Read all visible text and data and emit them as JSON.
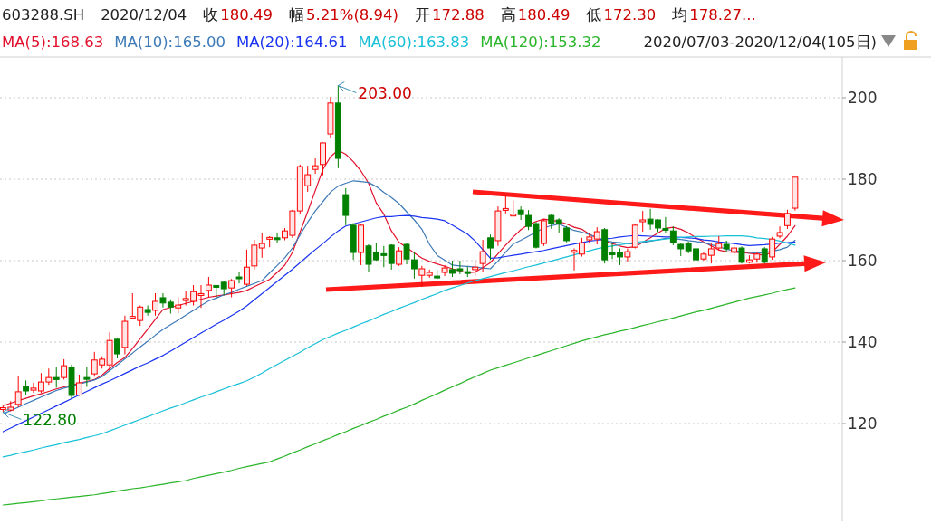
{
  "chart_data": {
    "type": "candlestick",
    "title": "603288.SH",
    "subtitle": "2020/07/03-2020/12/04(105日)",
    "annotations": [
      "2020/12/04",
      "收",
      "180.49",
      "幅",
      "5.21%(8.94)",
      "开",
      "172.88",
      "高",
      "180.49",
      "低",
      "172.30",
      "均",
      "178.27...",
      "203.00",
      {
        "text": "122.80",
        "y": 122.8
      }
    ],
    "categories": [
      null,
      null,
      null,
      null,
      null,
      null,
      null,
      null,
      null,
      null,
      null,
      null,
      null,
      null,
      null,
      null,
      null,
      null,
      null,
      null,
      null,
      null,
      null,
      null,
      null,
      null,
      null,
      null,
      null,
      null,
      null,
      null,
      null,
      null,
      null,
      null,
      null,
      null,
      null,
      null,
      null,
      null,
      null,
      null,
      null,
      null,
      null,
      null,
      null,
      null,
      null,
      null,
      null,
      null,
      null,
      null,
      null,
      null,
      null,
      null,
      null,
      null,
      null,
      null,
      null,
      null,
      null,
      null,
      null,
      null,
      null,
      null,
      null,
      null,
      null,
      null,
      null,
      null,
      null,
      null,
      null,
      null,
      null,
      null,
      null,
      null,
      null,
      null,
      null,
      null,
      null,
      null,
      null,
      null,
      null,
      null,
      null,
      null,
      null,
      null,
      null,
      null,
      null,
      null,
      null
    ],
    "ohlc": [
      [
        123.6,
        124.3,
        122.8,
        123.9
      ],
      [
        123.3,
        125.5,
        123,
        124
      ],
      [
        124.7,
        131.7,
        124,
        127.8
      ],
      [
        129.1,
        130.6,
        127,
        128
      ],
      [
        128.2,
        130,
        127.5,
        128.7
      ],
      [
        128,
        132.4,
        127.5,
        130.2
      ],
      [
        130.2,
        133.5,
        129.5,
        131.3
      ],
      [
        131.3,
        134,
        128.8,
        130.8
      ],
      [
        131.3,
        135.8,
        130.8,
        134.2
      ],
      [
        133.8,
        134.5,
        126.2,
        126.9
      ],
      [
        127,
        132,
        126.8,
        130
      ],
      [
        131.3,
        134,
        129,
        130.9
      ],
      [
        132.2,
        137.6,
        131.5,
        135.6
      ],
      [
        134.4,
        136.5,
        133.5,
        135.8
      ],
      [
        134.4,
        142.4,
        133,
        140.4
      ],
      [
        140.7,
        141,
        136,
        137.1
      ],
      [
        138.7,
        146.5,
        137,
        145.1
      ],
      [
        146,
        152,
        145.8,
        146.3
      ],
      [
        145.3,
        149,
        144,
        148.6
      ],
      [
        148,
        149,
        146.5,
        147.3
      ],
      [
        147.8,
        152,
        146.5,
        150
      ],
      [
        150.9,
        152,
        148.5,
        149.6
      ],
      [
        149.8,
        150.5,
        147,
        148.6
      ],
      [
        148.4,
        151,
        147,
        149.1
      ],
      [
        150.2,
        152.5,
        149,
        150.7
      ],
      [
        150,
        154,
        149,
        152.4
      ],
      [
        151.6,
        154,
        148.4,
        151.9
      ],
      [
        152.7,
        156,
        151,
        154
      ],
      [
        153.9,
        154,
        150.7,
        153.7
      ],
      [
        154.7,
        155,
        151.5,
        153.1
      ],
      [
        153.3,
        155.5,
        151,
        155.1
      ],
      [
        156,
        157.3,
        154.4,
        155.6
      ],
      [
        154.2,
        162.7,
        153.8,
        158.4
      ],
      [
        158.7,
        165.1,
        157.8,
        163.8
      ],
      [
        163.1,
        166.9,
        160.7,
        164.2
      ],
      [
        165.5,
        166,
        163.3,
        165.7
      ],
      [
        165.6,
        166.9,
        164.4,
        165.3
      ],
      [
        165.6,
        168,
        165,
        167.3
      ],
      [
        166.2,
        172.5,
        165.6,
        172.2
      ],
      [
        172.2,
        183.6,
        171.5,
        183.1
      ],
      [
        178.4,
        183.3,
        176.9,
        181.1
      ],
      [
        182.4,
        185.1,
        181.3,
        183.3
      ],
      [
        183.6,
        189,
        181,
        188.9
      ],
      [
        191.1,
        200.2,
        190,
        198.7
      ],
      [
        198.7,
        203,
        182.7,
        185.1
      ],
      [
        176.2,
        177.8,
        168.7,
        171.1
      ],
      [
        168.7,
        169.2,
        160.2,
        162
      ],
      [
        162,
        169,
        158.9,
        168.7
      ],
      [
        163.6,
        164,
        157.3,
        159.1
      ],
      [
        162,
        164.4,
        160,
        160.2
      ],
      [
        161.7,
        163.6,
        158.4,
        161.5
      ],
      [
        163.8,
        164,
        157.8,
        159.3
      ],
      [
        159.1,
        163.3,
        158.7,
        162.4
      ],
      [
        164,
        164.4,
        159.1,
        160.4
      ],
      [
        160.2,
        162,
        155.6,
        158
      ],
      [
        156.4,
        158.7,
        153.6,
        158
      ],
      [
        156.4,
        157.8,
        155.8,
        157.1
      ],
      [
        156.2,
        157.8,
        155.3,
        156
      ],
      [
        157.1,
        158.9,
        156.2,
        158.2
      ],
      [
        157.8,
        160,
        156,
        156.9
      ],
      [
        158,
        160,
        156.7,
        157.6
      ],
      [
        157.3,
        158.5,
        156,
        156.9
      ],
      [
        157.8,
        160,
        156.2,
        158.4
      ],
      [
        159.3,
        165.1,
        157.3,
        162.2
      ],
      [
        165.6,
        166.4,
        160.2,
        163.1
      ],
      [
        164.9,
        173.3,
        163.6,
        172.2
      ],
      [
        172.6,
        176,
        171.6,
        172.8
      ],
      [
        171.2,
        174.7,
        171,
        171.4
      ],
      [
        172.4,
        173.3,
        170,
        171.3
      ],
      [
        171.1,
        172.4,
        167.5,
        168.4
      ],
      [
        169.1,
        169.5,
        163,
        163.3
      ],
      [
        164.2,
        170.2,
        163.6,
        169.8
      ],
      [
        171.1,
        171.5,
        167.8,
        169.1
      ],
      [
        170,
        170.4,
        166.9,
        169.1
      ],
      [
        168,
        168.5,
        164.5,
        164.9
      ],
      [
        162.2,
        163,
        157.6,
        162.5
      ],
      [
        161.6,
        165.6,
        161,
        164.4
      ],
      [
        165.1,
        166.9,
        164.2,
        165.8
      ],
      [
        165.3,
        168.2,
        164,
        167.1
      ],
      [
        167.6,
        168,
        159.3,
        160.2
      ],
      [
        161.9,
        164.4,
        160.4,
        161.7
      ],
      [
        162,
        163,
        158.9,
        160.9
      ],
      [
        160.9,
        162.9,
        159.8,
        162.2
      ],
      [
        163.3,
        169,
        163,
        168.7
      ],
      [
        169.6,
        172.2,
        167.1,
        170
      ],
      [
        170.2,
        172.7,
        167.6,
        168.9
      ],
      [
        170,
        170.2,
        167,
        168
      ],
      [
        167.9,
        170.7,
        166.9,
        167.7
      ],
      [
        167.3,
        168.4,
        163.8,
        164.4
      ],
      [
        164,
        164.4,
        161.1,
        162.9
      ],
      [
        164.2,
        164.7,
        161.8,
        162.4
      ],
      [
        162.9,
        163.1,
        159.3,
        160.2
      ],
      [
        160.4,
        162,
        160,
        161.6
      ],
      [
        161.3,
        164.2,
        159.3,
        162.9
      ],
      [
        163.1,
        166,
        162.5,
        164.2
      ],
      [
        164,
        164.9,
        162,
        162.9
      ],
      [
        162.2,
        164,
        161.3,
        163.1
      ],
      [
        163.1,
        163.5,
        159.3,
        159.6
      ],
      [
        159.6,
        161.3,
        159.3,
        160.2
      ],
      [
        160.4,
        162,
        159.5,
        161.6
      ],
      [
        162.9,
        163.3,
        159.3,
        159.6
      ],
      [
        160.9,
        165.8,
        160.2,
        165.3
      ],
      [
        166,
        168.4,
        165.5,
        166.9
      ],
      [
        168.6,
        172.5,
        167.8,
        171.55
      ],
      [
        172.88,
        180.49,
        172.3,
        180.49
      ]
    ],
    "series": [
      {
        "type": "line",
        "name": "MA(5):168.63",
        "color": "#e2102c",
        "values": [
          124.4,
          125.0,
          125.6,
          126.2,
          126.8,
          127.3,
          127.9,
          128.5,
          129.0,
          129.4,
          129.9,
          130.3,
          130.8,
          131.9,
          133.5,
          135.0,
          136.2,
          138.4,
          140.8,
          143.2,
          145.6,
          148.0,
          148.5,
          149.0,
          149.5,
          150.0,
          150.5,
          151.0,
          151.3,
          151.6,
          151.9,
          152.2,
          152.7,
          153.6,
          154.5,
          155.4,
          157.1,
          158.9,
          162.0,
          167.0,
          172.0,
          177.2,
          182.4,
          185.5,
          187.1,
          186.1,
          184.3,
          182.0,
          179.0,
          174.2,
          171.4,
          167.3,
          164.5,
          163.2,
          161.9,
          160.6,
          159.8,
          159.2,
          158.6,
          158.0,
          157.5,
          157.0,
          157.2,
          158.3,
          159.5,
          161.7,
          163.8,
          165.8,
          167.6,
          168.9,
          169.6,
          170.2,
          169.9,
          169.6,
          169.0,
          168.2,
          167.7,
          166.5,
          165.5,
          164.8,
          164.2,
          163.6,
          163.2,
          163.4,
          164.5,
          165.6,
          166.8,
          167.9,
          168.2,
          167.7,
          166.8,
          165.6,
          164.6,
          163.6,
          162.6,
          162.2,
          162.0,
          162.0,
          161.8,
          161.6,
          161.3,
          162.1,
          164.0,
          166.0,
          168.6
        ]
      },
      {
        "type": "line",
        "name": "MA(10):165.00",
        "color": "#3d7ab8",
        "values": [
          122.4,
          123.2,
          124.0,
          124.9,
          125.7,
          126.5,
          127.3,
          128.1,
          128.7,
          129.2,
          129.7,
          130.2,
          130.7,
          131.5,
          133.0,
          134.4,
          135.9,
          137.3,
          138.8,
          140.2,
          141.7,
          143.1,
          144.3,
          145.4,
          146.6,
          147.8,
          149.0,
          150.1,
          150.8,
          151.6,
          152.2,
          153.0,
          153.7,
          154.4,
          155.1,
          157.0,
          158.8,
          160.7,
          163.1,
          166.3,
          169.4,
          172.2,
          174.5,
          176.8,
          178.3,
          179.0,
          179.6,
          179.4,
          179.2,
          178.2,
          176.8,
          175.5,
          174.0,
          172.0,
          170.0,
          167.7,
          164.0,
          161.3,
          160.1,
          158.9,
          158.7,
          158.6,
          158.4,
          158.2,
          158.0,
          159.9,
          162.1,
          164.1,
          165.0,
          166.0,
          167.0,
          168.0,
          168.6,
          169.0,
          168.2,
          167.4,
          167.0,
          166.4,
          165.7,
          165.0,
          164.6,
          164.4,
          164.2,
          164.1,
          164.4,
          164.8,
          165.1,
          165.5,
          165.4,
          165.2,
          164.9,
          164.7,
          164.4,
          163.9,
          163.4,
          162.8,
          162.4,
          162.2,
          162.0,
          161.8,
          162.0,
          162.3,
          162.7,
          163.3,
          165.0
        ]
      },
      {
        "type": "line",
        "name": "MA(20):164.61",
        "color": "#1a33f0",
        "values": [
          118.0,
          118.9,
          119.8,
          120.7,
          121.6,
          122.5,
          123.4,
          124.3,
          125.2,
          126.1,
          127.0,
          127.9,
          128.8,
          129.7,
          130.5,
          131.4,
          132.3,
          133.2,
          134.1,
          134.9,
          135.8,
          136.7,
          137.8,
          138.9,
          140.0,
          141.1,
          142.2,
          143.3,
          144.4,
          145.4,
          146.5,
          147.6,
          148.9,
          150.4,
          151.9,
          153.4,
          154.9,
          156.4,
          157.9,
          159.5,
          161.1,
          162.7,
          164.2,
          165.8,
          167.3,
          168.5,
          169.0,
          169.5,
          170.0,
          170.5,
          170.8,
          170.8,
          171.0,
          171.1,
          170.9,
          170.6,
          170.4,
          170.2,
          169.8,
          168.7,
          167.6,
          166.5,
          164.8,
          162.7,
          160.6,
          160.7,
          161.0,
          161.3,
          161.6,
          161.9,
          162.2,
          162.5,
          162.9,
          163.3,
          163.7,
          164.1,
          164.4,
          164.8,
          165.0,
          165.3,
          165.5,
          165.8,
          166.0,
          166.2,
          166.1,
          166.0,
          165.9,
          165.8,
          165.8,
          165.7,
          165.6,
          165.4,
          165.1,
          164.9,
          164.6,
          164.4,
          164.2,
          163.9,
          163.7,
          163.8,
          163.9,
          164.1,
          164.3,
          164.4,
          164.6
        ]
      },
      {
        "type": "line",
        "name": "MA(60):163.83",
        "color": "#18c0d8",
        "values": [
          111.8,
          112.2,
          112.7,
          113.1,
          113.5,
          114.0,
          114.4,
          114.8,
          115.3,
          115.7,
          116.1,
          116.6,
          117.0,
          117.5,
          118.2,
          118.9,
          119.6,
          120.3,
          121.0,
          121.7,
          122.4,
          123.1,
          123.8,
          124.4,
          125.1,
          125.8,
          126.5,
          127.1,
          127.8,
          128.5,
          129.2,
          129.8,
          130.5,
          131.4,
          132.4,
          133.5,
          134.5,
          135.5,
          136.5,
          137.5,
          138.6,
          139.6,
          140.6,
          141.4,
          142.2,
          142.9,
          143.7,
          144.5,
          145.2,
          146.0,
          146.8,
          147.5,
          148.3,
          149.0,
          149.7,
          150.5,
          151.2,
          151.9,
          152.7,
          153.3,
          153.9,
          154.5,
          155.1,
          155.6,
          156.1,
          156.6,
          157.1,
          157.5,
          158.0,
          158.5,
          158.9,
          159.4,
          159.9,
          160.4,
          160.9,
          161.4,
          161.9,
          162.4,
          162.9,
          163.3,
          163.6,
          163.9,
          164.2,
          164.5,
          164.7,
          164.9,
          165.1,
          165.3,
          165.5,
          165.7,
          165.8,
          165.9,
          165.9,
          166.0,
          166.0,
          166.1,
          166.1,
          166.1,
          165.9,
          165.6,
          165.4,
          165.2,
          164.8,
          164.3,
          163.8
        ]
      },
      {
        "type": "line",
        "name": "MA(120):153.32",
        "color": "#2bb52b",
        "values": [
          100.0,
          100.2,
          100.4,
          100.6,
          100.8,
          101.0,
          101.3,
          101.5,
          101.7,
          101.9,
          102.1,
          102.3,
          102.5,
          102.8,
          103.1,
          103.4,
          103.7,
          104.0,
          104.2,
          104.5,
          104.8,
          105.1,
          105.4,
          105.7,
          106.0,
          106.5,
          106.9,
          107.3,
          107.7,
          108.1,
          108.5,
          109.0,
          109.4,
          109.8,
          110.2,
          110.6,
          111.3,
          112.0,
          112.8,
          113.5,
          114.3,
          115.0,
          115.8,
          116.5,
          117.3,
          118.0,
          118.8,
          119.5,
          120.3,
          121.0,
          121.8,
          122.5,
          123.3,
          124.0,
          124.8,
          125.7,
          126.5,
          127.3,
          128.2,
          129.0,
          129.8,
          130.7,
          131.5,
          132.3,
          133.1,
          133.7,
          134.3,
          134.9,
          135.5,
          136.1,
          136.7,
          137.3,
          137.9,
          138.5,
          139.1,
          139.7,
          140.3,
          140.8,
          141.3,
          141.8,
          142.2,
          142.7,
          143.1,
          143.6,
          144.1,
          144.5,
          145.0,
          145.4,
          145.9,
          146.4,
          146.9,
          147.4,
          147.8,
          148.3,
          148.8,
          149.3,
          149.8,
          150.3,
          150.8,
          151.2,
          151.6,
          152.0,
          152.5,
          152.9,
          153.3
        ]
      }
    ],
    "ylim": [
      96,
      210
    ],
    "yticks": [
      120,
      140,
      160,
      180,
      200
    ],
    "grid": "y",
    "tick_labels": "y"
  }
}
